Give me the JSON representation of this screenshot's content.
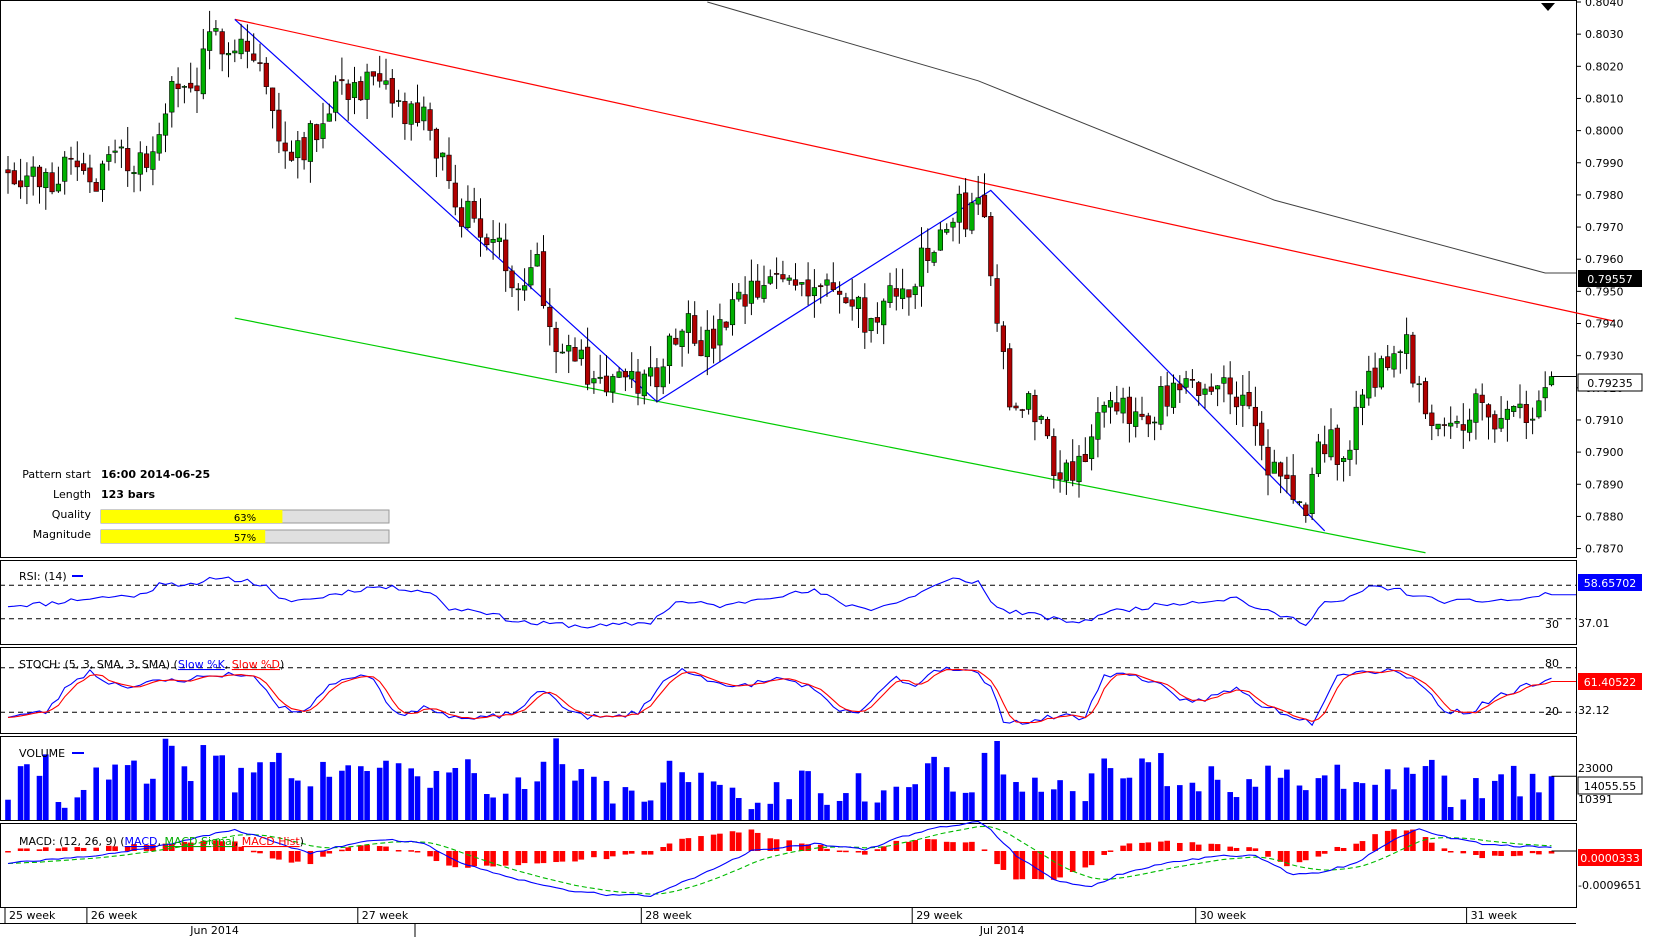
{
  "chart_data": {
    "type": "candlestick",
    "main": {
      "y_ticks": [
        "0.8040",
        "0.8030",
        "0.8020",
        "0.8010",
        "0.8000",
        "0.7990",
        "0.7980",
        "0.7970",
        "0.7960",
        "0.7950",
        "0.7940",
        "0.7930",
        "0.7920",
        "0.7910",
        "0.7900",
        "0.7890",
        "0.7880",
        "0.7870"
      ],
      "ylim": [
        0.7868,
        0.804
      ],
      "current_price": "0.79235",
      "sma_value": "0.79557",
      "pattern": {
        "start_label": "Pattern start",
        "start_value": "16:00 2014-06-25",
        "length_label": "Length",
        "length_value": "123 bars",
        "quality_label": "Quality",
        "quality_value": "63%",
        "quality": 0.63,
        "magnitude_label": "Magnitude",
        "magnitude_value": "57%",
        "magnitude": 0.57
      },
      "resistance_line": {
        "start_bar": 36,
        "start_price": 0.80346,
        "end_bar": 255,
        "end_price": 0.79407,
        "color": "#ff0000"
      },
      "support_line": {
        "start_bar": 36,
        "start_price": 0.79417,
        "end_bar": 225,
        "end_price": 0.78687,
        "color": "#00cc00"
      },
      "zigzag": [
        {
          "bar": 36,
          "price": 0.80346
        },
        {
          "bar": 103,
          "price": 0.79157
        },
        {
          "bar": 156,
          "price": 0.79814
        },
        {
          "bar": 209,
          "price": 0.78755
        }
      ],
      "sma_line": [
        {
          "bar": 111,
          "price": 0.804
        },
        {
          "bar": 154,
          "price": 0.80155
        },
        {
          "bar": 201,
          "price": 0.79784
        },
        {
          "bar": 244,
          "price": 0.79557
        }
      ]
    },
    "rsi": {
      "label": "RSI: (14)",
      "value": "58.65702",
      "levels": [
        {
          "value": "70",
          "printed": false
        },
        {
          "value": "30",
          "printed": true
        }
      ],
      "scale_label": "37.01"
    },
    "stoch": {
      "label": "STOCH: (5, 3, SMA, 3, SMA)",
      "k_label": "Slow %K",
      "d_label": "Slow %D",
      "value": "61.40522",
      "level_high": "80",
      "level_low": "20",
      "scale_label": "32.12"
    },
    "volume": {
      "label": "VOLUME",
      "value": "14055.55",
      "top_label": "23000",
      "low_label": "10391"
    },
    "macd": {
      "label": "MACD: (12, 26, 9)",
      "line_label": "MACD",
      "signal_label": "MACD Signal",
      "hist_label": "MACD Hist",
      "value": "0.0000333",
      "low_label": "-0.0009651"
    },
    "x_axis": {
      "weeks": [
        {
          "label": "25 week",
          "bar": 0
        },
        {
          "label": "26 week",
          "bar": 13
        },
        {
          "label": "27 week",
          "bar": 56
        },
        {
          "label": "28 week",
          "bar": 101
        },
        {
          "label": "29 week",
          "bar": 144
        },
        {
          "label": "30 week",
          "bar": 189
        },
        {
          "label": "31 week",
          "bar": 232
        }
      ],
      "months": [
        {
          "label": "Jun 2014",
          "bar": 32
        },
        {
          "label": "Jul 2014",
          "bar": 157
        }
      ]
    },
    "colors": {
      "bull": "#00b000",
      "bear": "#b00000",
      "resistance": "#ff0000",
      "support": "#00cc00",
      "zigzag": "#0000ff",
      "sma": "#404040",
      "rsi": "#0000ff",
      "stoch_k": "#0000ff",
      "stoch_d": "#ff0000",
      "volume": "#0000ff",
      "macd": "#0000ff",
      "macd_signal": "#00bb00",
      "macd_hist": "#ff0000",
      "quality_bar": "#ffff00"
    },
    "price_waypoints": [
      [
        0,
        0.799
      ],
      [
        6,
        0.7983
      ],
      [
        10,
        0.7993
      ],
      [
        14,
        0.7985
      ],
      [
        17,
        0.7992
      ],
      [
        23,
        0.7989
      ],
      [
        25,
        0.801
      ],
      [
        30,
        0.8015
      ],
      [
        33,
        0.803
      ],
      [
        37,
        0.8028
      ],
      [
        40,
        0.802
      ],
      [
        43,
        0.7996
      ],
      [
        48,
        0.7997
      ],
      [
        52,
        0.8015
      ],
      [
        58,
        0.8013
      ],
      [
        63,
        0.8005
      ],
      [
        67,
        0.8002
      ],
      [
        70,
        0.798
      ],
      [
        75,
        0.797
      ],
      [
        80,
        0.7955
      ],
      [
        84,
        0.796
      ],
      [
        86,
        0.794
      ],
      [
        88,
        0.7934
      ],
      [
        93,
        0.7923
      ],
      [
        99,
        0.792
      ],
      [
        103,
        0.7925
      ],
      [
        107,
        0.7943
      ],
      [
        111,
        0.7932
      ],
      [
        116,
        0.7945
      ],
      [
        123,
        0.7955
      ],
      [
        129,
        0.7953
      ],
      [
        133,
        0.7946
      ],
      [
        137,
        0.794
      ],
      [
        141,
        0.7948
      ],
      [
        146,
        0.796
      ],
      [
        150,
        0.7974
      ],
      [
        155,
        0.7977
      ],
      [
        156,
        0.7958
      ],
      [
        157,
        0.7935
      ],
      [
        160,
        0.7912
      ],
      [
        163,
        0.7915
      ],
      [
        166,
        0.7898
      ],
      [
        169,
        0.7895
      ],
      [
        173,
        0.791
      ],
      [
        177,
        0.7911
      ],
      [
        181,
        0.7914
      ],
      [
        186,
        0.7917
      ],
      [
        191,
        0.7921
      ],
      [
        195,
        0.792
      ],
      [
        200,
        0.7895
      ],
      [
        204,
        0.7888
      ],
      [
        206,
        0.7878
      ],
      [
        208,
        0.7902
      ],
      [
        213,
        0.7902
      ],
      [
        216,
        0.7925
      ],
      [
        219,
        0.7928
      ],
      [
        222,
        0.7932
      ],
      [
        225,
        0.7912
      ],
      [
        230,
        0.7912
      ],
      [
        236,
        0.7913
      ],
      [
        242,
        0.791
      ],
      [
        245,
        0.79235
      ]
    ],
    "rsi_waypoints": [
      [
        0,
        46
      ],
      [
        6,
        48
      ],
      [
        11,
        53
      ],
      [
        16,
        56
      ],
      [
        22,
        59
      ],
      [
        24,
        74
      ],
      [
        30,
        69
      ],
      [
        33,
        80
      ],
      [
        38,
        75
      ],
      [
        41,
        68
      ],
      [
        43,
        52
      ],
      [
        48,
        53
      ],
      [
        52,
        60
      ],
      [
        58,
        68
      ],
      [
        63,
        66
      ],
      [
        67,
        62
      ],
      [
        70,
        42
      ],
      [
        75,
        40
      ],
      [
        80,
        28
      ],
      [
        84,
        24
      ],
      [
        87,
        24
      ],
      [
        91,
        21
      ],
      [
        96,
        22
      ],
      [
        102,
        26
      ],
      [
        106,
        50
      ],
      [
        110,
        48
      ],
      [
        114,
        45
      ],
      [
        120,
        56
      ],
      [
        128,
        63
      ],
      [
        133,
        47
      ],
      [
        137,
        42
      ],
      [
        142,
        51
      ],
      [
        146,
        66
      ],
      [
        150,
        77
      ],
      [
        154,
        74
      ],
      [
        156,
        50
      ],
      [
        158,
        40
      ],
      [
        162,
        36
      ],
      [
        167,
        28
      ],
      [
        171,
        26
      ],
      [
        174,
        38
      ],
      [
        178,
        41
      ],
      [
        184,
        48
      ],
      [
        191,
        52
      ],
      [
        195,
        55
      ],
      [
        199,
        40
      ],
      [
        203,
        32
      ],
      [
        206,
        25
      ],
      [
        209,
        50
      ],
      [
        212,
        50
      ],
      [
        216,
        68
      ],
      [
        220,
        66
      ],
      [
        224,
        56
      ],
      [
        229,
        50
      ],
      [
        236,
        52
      ],
      [
        241,
        53
      ],
      [
        245,
        63
      ]
    ],
    "stoch_waypoints": [
      [
        0,
        15
      ],
      [
        6,
        20
      ],
      [
        10,
        60
      ],
      [
        13,
        75
      ],
      [
        16,
        60
      ],
      [
        20,
        55
      ],
      [
        24,
        62
      ],
      [
        28,
        64
      ],
      [
        33,
        70
      ],
      [
        37,
        72
      ],
      [
        40,
        62
      ],
      [
        43,
        25
      ],
      [
        47,
        22
      ],
      [
        52,
        62
      ],
      [
        55,
        70
      ],
      [
        58,
        68
      ],
      [
        61,
        22
      ],
      [
        64,
        18
      ],
      [
        67,
        28
      ],
      [
        70,
        14
      ],
      [
        74,
        10
      ],
      [
        80,
        18
      ],
      [
        85,
        50
      ],
      [
        88,
        30
      ],
      [
        91,
        15
      ],
      [
        95,
        12
      ],
      [
        100,
        20
      ],
      [
        104,
        60
      ],
      [
        107,
        78
      ],
      [
        110,
        70
      ],
      [
        114,
        52
      ],
      [
        119,
        60
      ],
      [
        123,
        66
      ],
      [
        127,
        55
      ],
      [
        132,
        20
      ],
      [
        135,
        20
      ],
      [
        138,
        42
      ],
      [
        141,
        68
      ],
      [
        144,
        55
      ],
      [
        147,
        78
      ],
      [
        150,
        80
      ],
      [
        154,
        72
      ],
      [
        156,
        52
      ],
      [
        158,
        10
      ],
      [
        162,
        6
      ],
      [
        167,
        16
      ],
      [
        171,
        12
      ],
      [
        174,
        72
      ],
      [
        178,
        70
      ],
      [
        182,
        62
      ],
      [
        186,
        34
      ],
      [
        190,
        38
      ],
      [
        195,
        52
      ],
      [
        199,
        30
      ],
      [
        203,
        18
      ],
      [
        207,
        6
      ],
      [
        211,
        72
      ],
      [
        216,
        75
      ],
      [
        220,
        78
      ],
      [
        224,
        60
      ],
      [
        228,
        22
      ],
      [
        232,
        20
      ],
      [
        236,
        40
      ],
      [
        241,
        55
      ],
      [
        245,
        61
      ]
    ],
    "volume_waypoints": [
      [
        0,
        9
      ],
      [
        3,
        14
      ],
      [
        6,
        19
      ],
      [
        8,
        8
      ],
      [
        12,
        11
      ],
      [
        16,
        14
      ],
      [
        19,
        16
      ],
      [
        23,
        12
      ],
      [
        24,
        23
      ],
      [
        28,
        16
      ],
      [
        32,
        22
      ],
      [
        36,
        12
      ],
      [
        40,
        18
      ],
      [
        42,
        23
      ],
      [
        45,
        14
      ],
      [
        48,
        12
      ],
      [
        52,
        18
      ],
      [
        55,
        18
      ],
      [
        58,
        9
      ],
      [
        61,
        23
      ],
      [
        64,
        16
      ],
      [
        67,
        9
      ],
      [
        70,
        19
      ],
      [
        73,
        16
      ],
      [
        77,
        12
      ],
      [
        80,
        8
      ],
      [
        84,
        12
      ],
      [
        86,
        26
      ],
      [
        89,
        12
      ],
      [
        93,
        12
      ],
      [
        97,
        8
      ],
      [
        100,
        6
      ],
      [
        104,
        15
      ],
      [
        107,
        14
      ],
      [
        111,
        9
      ],
      [
        115,
        12
      ],
      [
        119,
        7
      ],
      [
        123,
        9
      ],
      [
        127,
        15
      ],
      [
        131,
        8
      ],
      [
        135,
        12
      ],
      [
        139,
        6
      ],
      [
        142,
        10
      ],
      [
        146,
        18
      ],
      [
        150,
        12
      ],
      [
        154,
        9
      ],
      [
        156,
        26
      ],
      [
        159,
        10
      ],
      [
        164,
        12
      ],
      [
        167,
        16
      ],
      [
        171,
        10
      ],
      [
        174,
        20
      ],
      [
        178,
        9
      ],
      [
        182,
        21
      ],
      [
        185,
        12
      ],
      [
        189,
        10
      ],
      [
        192,
        15
      ],
      [
        196,
        11
      ],
      [
        200,
        20
      ],
      [
        203,
        14
      ],
      [
        206,
        9
      ],
      [
        209,
        12
      ],
      [
        213,
        14
      ],
      [
        216,
        16
      ],
      [
        220,
        13
      ],
      [
        224,
        18
      ],
      [
        227,
        14
      ],
      [
        230,
        4
      ],
      [
        233,
        9
      ],
      [
        237,
        16
      ],
      [
        241,
        9
      ],
      [
        245,
        14
      ]
    ],
    "macd_waypoints": [
      [
        0,
        -0.5
      ],
      [
        10,
        -0.3
      ],
      [
        22,
        0.1
      ],
      [
        30,
        0.55
      ],
      [
        36,
        0.9
      ],
      [
        42,
        0.4
      ],
      [
        48,
        -0.1
      ],
      [
        55,
        0.35
      ],
      [
        60,
        0.5
      ],
      [
        66,
        0.3
      ],
      [
        72,
        -0.5
      ],
      [
        80,
        -1.1
      ],
      [
        88,
        -1.6
      ],
      [
        96,
        -1.85
      ],
      [
        102,
        -1.85
      ],
      [
        110,
        -1.0
      ],
      [
        118,
        0.0
      ],
      [
        128,
        0.3
      ],
      [
        136,
        0.05
      ],
      [
        142,
        0.6
      ],
      [
        148,
        1.0
      ],
      [
        154,
        1.2
      ],
      [
        156,
        0.9
      ],
      [
        160,
        -0.2
      ],
      [
        166,
        -1.2
      ],
      [
        172,
        -1.5
      ],
      [
        176,
        -1.0
      ],
      [
        184,
        -0.5
      ],
      [
        192,
        -0.2
      ],
      [
        198,
        -0.2
      ],
      [
        204,
        -1.0
      ],
      [
        208,
        -0.9
      ],
      [
        214,
        -0.5
      ],
      [
        220,
        0.5
      ],
      [
        224,
        0.9
      ],
      [
        228,
        0.6
      ],
      [
        234,
        0.3
      ],
      [
        240,
        0.2
      ],
      [
        245,
        0.15
      ]
    ]
  }
}
